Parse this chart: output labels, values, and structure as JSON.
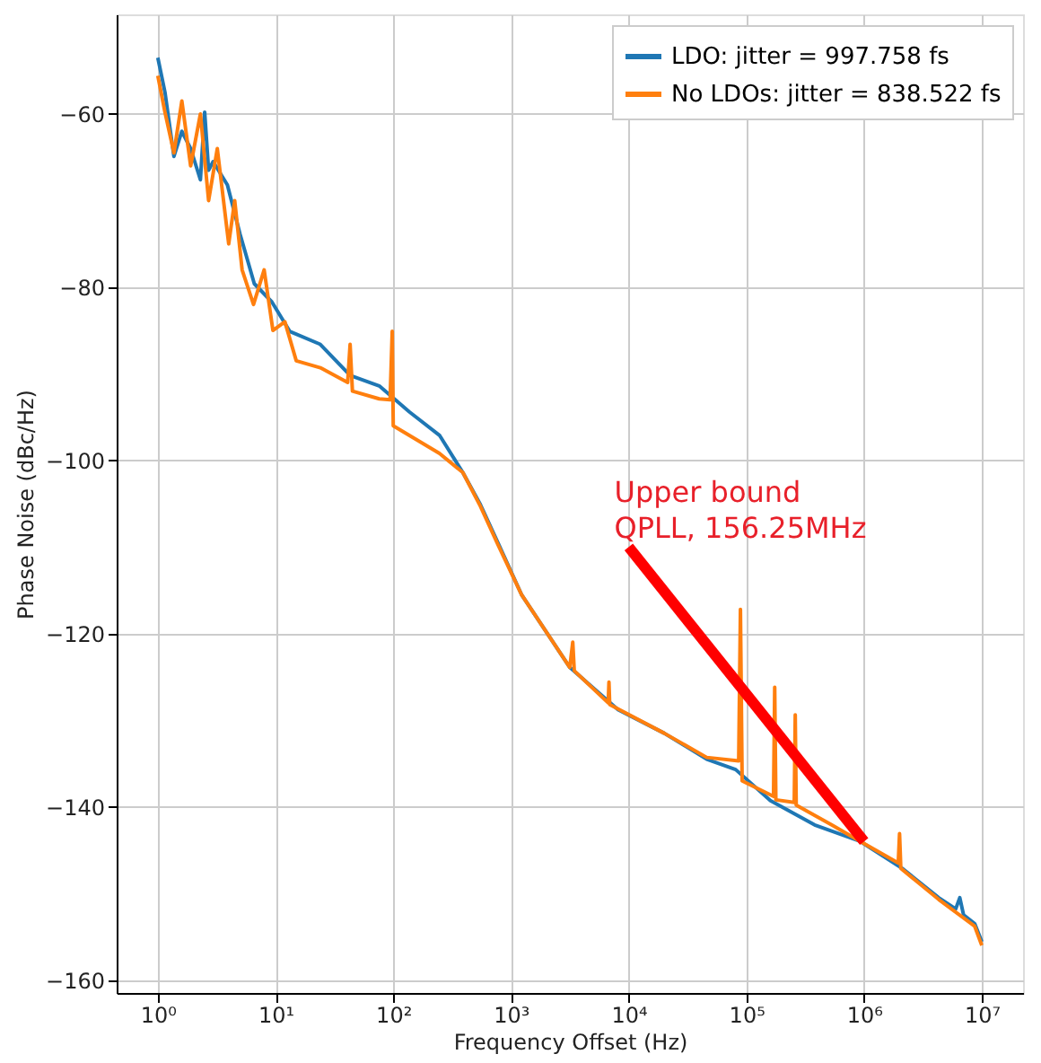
{
  "chart_data": {
    "type": "line",
    "xlabel": "Frequency Offset (Hz)",
    "ylabel": "Phase Noise (dBc/Hz)",
    "log": "x",
    "grid": true,
    "legend": "top right",
    "xlim": [
      0.447,
      22400000
    ],
    "ylim": [
      -161.5,
      -48.5
    ],
    "xticks": [
      {
        "value": 1,
        "label": "10⁰"
      },
      {
        "value": 10,
        "label": "10¹"
      },
      {
        "value": 100,
        "label": "10²"
      },
      {
        "value": 1000,
        "label": "10³"
      },
      {
        "value": 10000,
        "label": "10⁴"
      },
      {
        "value": 100000,
        "label": "10⁵"
      },
      {
        "value": 1000000,
        "label": "10⁶"
      },
      {
        "value": 10000000,
        "label": "10⁷"
      }
    ],
    "yticks": [
      -60,
      -80,
      -100,
      -120,
      -140,
      -160
    ],
    "annotations": [
      "Upper bound\nQPLL, 156.25MHz"
    ],
    "series": [
      {
        "name": "LDO: jitter = 997.758 fs",
        "color": "#1f77b4",
        "x": [
          1,
          1.15,
          1.37,
          1.6,
          1.9,
          2.3,
          2.5,
          2.7,
          2.95,
          3.9,
          5,
          6.6,
          9.3,
          13.2,
          24,
          43,
          76,
          137,
          247,
          390,
          550,
          780,
          1230,
          1590,
          3160,
          8130,
          20000,
          46000,
          81000,
          160000,
          380000,
          930000,
          2100000,
          4300000,
          6000000,
          6500000,
          7000000,
          8700000,
          10000000
        ],
        "values": [
          -53.5,
          -57.5,
          -64.9,
          -62,
          -64,
          -67.6,
          -59.8,
          -66.5,
          -65.5,
          -68.2,
          -73.9,
          -79.6,
          -81.7,
          -85.1,
          -86.6,
          -90.2,
          -91.4,
          -94.4,
          -97.1,
          -101.4,
          -105.1,
          -109.6,
          -115.5,
          -117.8,
          -123.9,
          -128.8,
          -131.5,
          -134.5,
          -135.7,
          -139.3,
          -142.1,
          -144,
          -147.1,
          -150.5,
          -151.8,
          -150.5,
          -152.5,
          -153.5,
          -155.6
        ]
      },
      {
        "name": "No LDOs: jitter = 838.522 fs",
        "color": "#ff7f0e",
        "x": [
          1,
          1.15,
          1.37,
          1.6,
          1.9,
          2.3,
          2.7,
          3.2,
          4,
          4.5,
          5.2,
          6.5,
          8,
          9.5,
          12,
          15,
          24,
          41,
          43,
          45,
          76,
          94,
          98,
          100,
          247,
          390,
          550,
          780,
          1230,
          1590,
          3160,
          3350,
          3450,
          6700,
          6800,
          6900,
          20000,
          46000,
          86000,
          89000,
          92000,
          170000,
          174000,
          178000,
          255000,
          260000,
          265000,
          530000,
          930000,
          1950000,
          2000000,
          2050000,
          4300000,
          8700000,
          10000000
        ],
        "values": [
          -55.6,
          -59.8,
          -64.5,
          -58.5,
          -66,
          -60,
          -70,
          -64,
          -75,
          -70,
          -78,
          -82,
          -78,
          -85,
          -84,
          -88.5,
          -89.3,
          -91,
          -86.6,
          -92,
          -92.9,
          -93,
          -85.1,
          -96,
          -99.2,
          -101.4,
          -105.3,
          -109.8,
          -115.5,
          -117.8,
          -123.9,
          -121,
          -124.3,
          -128,
          -125.6,
          -128.2,
          -131.5,
          -134.3,
          -134.7,
          -117.2,
          -137,
          -138.8,
          -126.2,
          -139.2,
          -139.5,
          -129.4,
          -139.8,
          -142.1,
          -144,
          -146.5,
          -143.1,
          -147.1,
          -150.7,
          -153.8,
          -156
        ]
      },
      {
        "color": "#ff0000",
        "x": [
          10000,
          1000000
        ],
        "values": [
          -110,
          -144
        ]
      }
    ]
  }
}
